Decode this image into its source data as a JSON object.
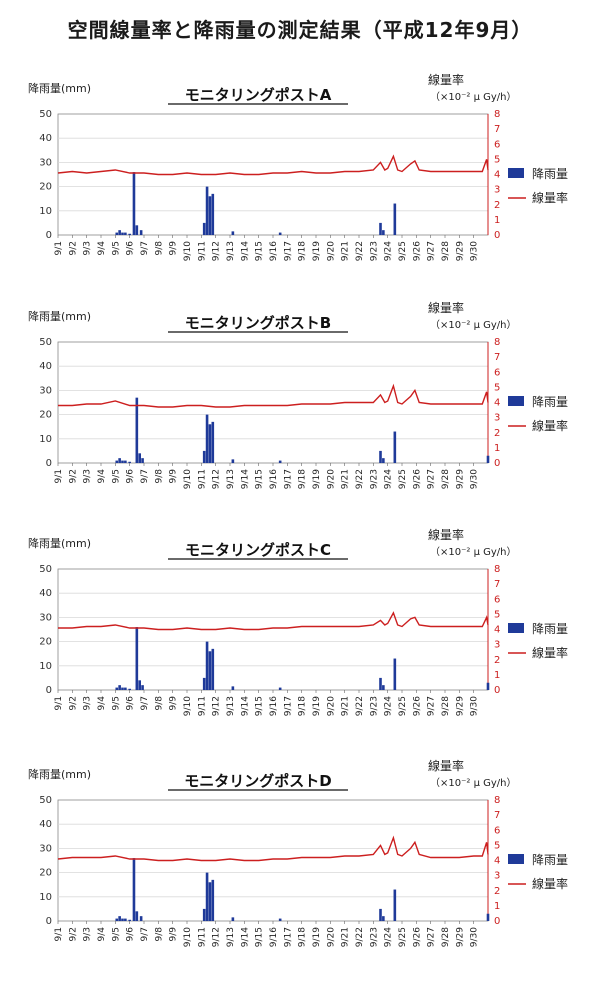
{
  "title": "空間線量率と降雨量の測定結果（平成12年9月）",
  "colors": {
    "rain": "#1f3a99",
    "dose": "#cc1f1f",
    "axis_left": "#333333",
    "axis_right": "#cc1f1f",
    "grid": "#d9d9d9"
  },
  "chart_data": [
    {
      "type": "bar",
      "title": "モニタリングポストA",
      "ylabel": "降雨量(mm)",
      "ylabel_right": "線量率",
      "ylabel_right_unit": "（×10⁻² μ Gy/h）",
      "ylim": [
        0,
        50
      ],
      "yticks": [
        0,
        10,
        20,
        30,
        40,
        50
      ],
      "ylim_right": [
        0,
        8
      ],
      "yticks_right": [
        0,
        1,
        2,
        3,
        4,
        5,
        6,
        7,
        8
      ],
      "x_ticks": [
        "9/1",
        "9/2",
        "9/3",
        "9/4",
        "9/5",
        "9/6",
        "9/7",
        "9/8",
        "9/9",
        "9/10",
        "9/11",
        "9/12",
        "9/13",
        "9/14",
        "9/15",
        "9/16",
        "9/17",
        "9/18",
        "9/19",
        "9/20",
        "9/21",
        "9/22",
        "9/23",
        "9/24",
        "9/25",
        "9/26",
        "9/27",
        "9/28",
        "9/29",
        "9/30"
      ],
      "x_min": 1,
      "x_max": 31,
      "grid": "horizontal",
      "legend": "right",
      "series": [
        {
          "name": "降雨量",
          "kind": "bar",
          "x": [
            5.1,
            5.3,
            5.5,
            5.7,
            6.0,
            6.3,
            6.5,
            6.8,
            11.2,
            11.4,
            11.6,
            11.8,
            13.2,
            16.5,
            23.5,
            23.7,
            24.5
          ],
          "values": [
            1,
            2,
            1,
            1,
            0.5,
            26,
            4,
            2,
            5,
            20,
            16,
            17,
            1.5,
            1,
            5,
            2,
            13
          ]
        },
        {
          "name": "線量率",
          "kind": "line",
          "x": [
            1,
            2,
            3,
            4,
            5,
            6,
            7,
            8,
            9,
            10,
            11,
            12,
            13,
            14,
            15,
            16,
            17,
            18,
            19,
            20,
            21,
            22,
            23,
            23.5,
            23.8,
            24,
            24.4,
            24.7,
            25,
            25.6,
            25.9,
            26.2,
            27,
            28,
            29,
            30,
            30.6,
            30.9,
            31
          ],
          "values": [
            4.1,
            4.2,
            4.1,
            4.2,
            4.3,
            4.1,
            4.1,
            4.0,
            4.0,
            4.1,
            4.0,
            4.0,
            4.1,
            4.0,
            4.0,
            4.1,
            4.1,
            4.2,
            4.1,
            4.1,
            4.2,
            4.2,
            4.3,
            4.8,
            4.3,
            4.4,
            5.2,
            4.3,
            4.2,
            4.7,
            4.9,
            4.3,
            4.2,
            4.2,
            4.2,
            4.2,
            4.2,
            5.0,
            4.3
          ]
        }
      ]
    },
    {
      "type": "bar",
      "title": "モニタリングポストB",
      "ylabel": "降雨量(mm)",
      "ylabel_right": "線量率",
      "ylabel_right_unit": "（×10⁻² μ Gy/h）",
      "ylim": [
        0,
        50
      ],
      "yticks": [
        0,
        10,
        20,
        30,
        40,
        50
      ],
      "ylim_right": [
        0,
        8
      ],
      "yticks_right": [
        0,
        1,
        2,
        3,
        4,
        5,
        6,
        7,
        8
      ],
      "x_ticks": [
        "9/1",
        "9/2",
        "9/3",
        "9/4",
        "9/5",
        "9/6",
        "9/7",
        "9/8",
        "9/9",
        "9/10",
        "9/11",
        "9/12",
        "9/13",
        "9/14",
        "9/15",
        "9/16",
        "9/17",
        "9/18",
        "9/19",
        "9/20",
        "9/21",
        "9/22",
        "9/23",
        "9/24",
        "9/25",
        "9/26",
        "9/27",
        "9/28",
        "9/29",
        "9/30"
      ],
      "x_min": 1,
      "x_max": 31,
      "grid": "horizontal",
      "legend": "right",
      "series": [
        {
          "name": "降雨量",
          "kind": "bar",
          "x": [
            5.1,
            5.3,
            5.5,
            5.7,
            6.0,
            6.5,
            6.7,
            6.9,
            11.2,
            11.4,
            11.6,
            11.8,
            13.2,
            16.5,
            23.5,
            23.7,
            24.5,
            31
          ],
          "values": [
            1,
            2,
            1,
            1,
            0.5,
            27,
            4,
            2,
            5,
            20,
            16,
            17,
            1.5,
            1,
            5,
            2,
            13,
            3
          ]
        },
        {
          "name": "線量率",
          "kind": "line",
          "x": [
            1,
            2,
            3,
            4,
            5,
            6,
            7,
            8,
            9,
            10,
            11,
            12,
            13,
            14,
            15,
            16,
            17,
            18,
            19,
            20,
            21,
            22,
            23,
            23.5,
            23.8,
            24,
            24.4,
            24.7,
            25,
            25.6,
            25.9,
            26.2,
            27,
            28,
            29,
            30,
            30.6,
            30.9,
            31
          ],
          "values": [
            3.8,
            3.8,
            3.9,
            3.9,
            4.1,
            3.8,
            3.8,
            3.7,
            3.7,
            3.8,
            3.8,
            3.7,
            3.7,
            3.8,
            3.8,
            3.8,
            3.8,
            3.9,
            3.9,
            3.9,
            4.0,
            4.0,
            4.0,
            4.5,
            4.0,
            4.1,
            5.1,
            4.0,
            3.9,
            4.4,
            4.8,
            4.0,
            3.9,
            3.9,
            3.9,
            3.9,
            3.9,
            4.7,
            4.0
          ]
        }
      ]
    },
    {
      "type": "bar",
      "title": "モニタリングポストC",
      "ylabel": "降雨量(mm)",
      "ylabel_right": "線量率",
      "ylabel_right_unit": "（×10⁻² μ Gy/h）",
      "ylim": [
        0,
        50
      ],
      "yticks": [
        0,
        10,
        20,
        30,
        40,
        50
      ],
      "ylim_right": [
        0,
        8
      ],
      "yticks_right": [
        0,
        1,
        2,
        3,
        4,
        5,
        6,
        7,
        8
      ],
      "x_ticks": [
        "9/1",
        "9/2",
        "9/3",
        "9/4",
        "9/5",
        "9/6",
        "9/7",
        "9/8",
        "9/9",
        "9/10",
        "9/11",
        "9/12",
        "9/13",
        "9/14",
        "9/15",
        "9/16",
        "9/17",
        "9/18",
        "9/19",
        "9/20",
        "9/21",
        "9/22",
        "9/23",
        "9/24",
        "9/25",
        "9/26",
        "9/27",
        "9/28",
        "9/29",
        "9/30"
      ],
      "x_min": 1,
      "x_max": 31,
      "grid": "horizontal",
      "legend": "right",
      "series": [
        {
          "name": "降雨量",
          "kind": "bar",
          "x": [
            5.1,
            5.3,
            5.5,
            5.7,
            6.0,
            6.5,
            6.7,
            6.9,
            11.2,
            11.4,
            11.6,
            11.8,
            13.2,
            16.5,
            23.5,
            23.7,
            24.5,
            31
          ],
          "values": [
            1,
            2,
            1,
            1,
            0.5,
            26,
            4,
            2,
            5,
            20,
            16,
            17,
            1.5,
            1,
            5,
            2,
            13,
            3
          ]
        },
        {
          "name": "線量率",
          "kind": "line",
          "x": [
            1,
            2,
            3,
            4,
            5,
            6,
            7,
            8,
            9,
            10,
            11,
            12,
            13,
            14,
            15,
            16,
            17,
            18,
            19,
            20,
            21,
            22,
            23,
            23.5,
            23.8,
            24,
            24.4,
            24.7,
            25,
            25.6,
            25.9,
            26.2,
            27,
            28,
            29,
            30,
            30.6,
            30.9,
            31
          ],
          "values": [
            4.1,
            4.1,
            4.2,
            4.2,
            4.3,
            4.1,
            4.1,
            4.0,
            4.0,
            4.1,
            4.0,
            4.0,
            4.1,
            4.0,
            4.0,
            4.1,
            4.1,
            4.2,
            4.2,
            4.2,
            4.2,
            4.2,
            4.3,
            4.6,
            4.3,
            4.4,
            5.1,
            4.3,
            4.2,
            4.7,
            4.8,
            4.3,
            4.2,
            4.2,
            4.2,
            4.2,
            4.2,
            4.8,
            4.3
          ]
        }
      ]
    },
    {
      "type": "bar",
      "title": "モニタリングポストD",
      "ylabel": "降雨量(mm)",
      "ylabel_right": "線量率",
      "ylabel_right_unit": "（×10⁻² μ Gy/h）",
      "ylim": [
        0,
        50
      ],
      "yticks": [
        0,
        10,
        20,
        30,
        40,
        50
      ],
      "ylim_right": [
        0,
        8
      ],
      "yticks_right": [
        0,
        1,
        2,
        3,
        4,
        5,
        6,
        7,
        8
      ],
      "x_ticks": [
        "9/1",
        "9/2",
        "9/3",
        "9/4",
        "9/5",
        "9/6",
        "9/7",
        "9/8",
        "9/9",
        "9/10",
        "9/11",
        "9/12",
        "9/13",
        "9/14",
        "9/15",
        "9/16",
        "9/17",
        "9/18",
        "9/19",
        "9/20",
        "9/21",
        "9/22",
        "9/23",
        "9/24",
        "9/25",
        "9/26",
        "9/27",
        "9/28",
        "9/29",
        "9/30"
      ],
      "x_min": 1,
      "x_max": 31,
      "grid": "horizontal",
      "legend": "right",
      "series": [
        {
          "name": "降雨量",
          "kind": "bar",
          "x": [
            5.1,
            5.3,
            5.5,
            5.7,
            6.0,
            6.3,
            6.5,
            6.8,
            11.2,
            11.4,
            11.6,
            11.8,
            13.2,
            16.5,
            23.5,
            23.7,
            24.5,
            31
          ],
          "values": [
            1,
            2,
            1,
            1,
            0.5,
            26,
            4,
            2,
            5,
            20,
            16,
            17,
            1.5,
            1,
            5,
            2,
            13,
            3
          ]
        },
        {
          "name": "線量率",
          "kind": "line",
          "x": [
            1,
            2,
            3,
            4,
            5,
            6,
            7,
            8,
            9,
            10,
            11,
            12,
            13,
            14,
            15,
            16,
            17,
            18,
            19,
            20,
            21,
            22,
            23,
            23.5,
            23.8,
            24,
            24.4,
            24.7,
            25,
            25.6,
            25.9,
            26.2,
            27,
            28,
            29,
            30,
            30.6,
            30.9,
            31
          ],
          "values": [
            4.1,
            4.2,
            4.2,
            4.2,
            4.3,
            4.1,
            4.1,
            4.0,
            4.0,
            4.1,
            4.0,
            4.0,
            4.1,
            4.0,
            4.0,
            4.1,
            4.1,
            4.2,
            4.2,
            4.2,
            4.3,
            4.3,
            4.4,
            5.0,
            4.4,
            4.5,
            5.5,
            4.4,
            4.3,
            4.8,
            5.2,
            4.4,
            4.2,
            4.2,
            4.2,
            4.3,
            4.3,
            5.2,
            4.4
          ]
        }
      ]
    }
  ]
}
